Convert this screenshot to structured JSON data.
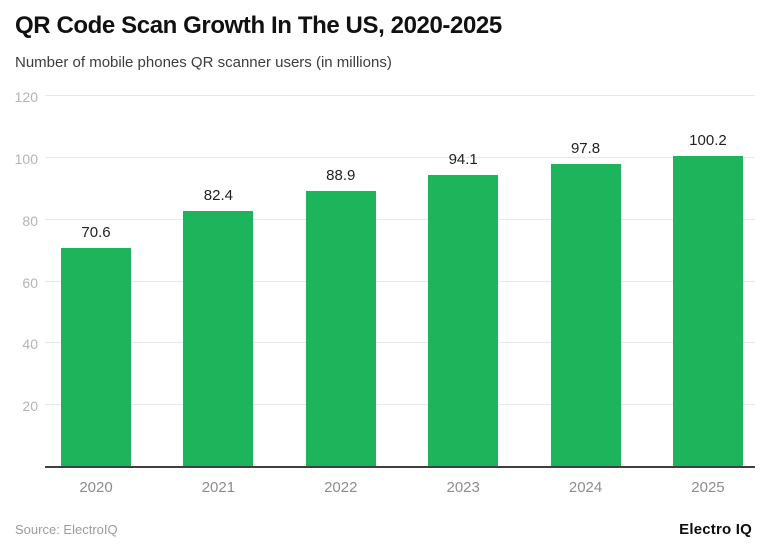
{
  "header": {
    "title": "QR Code Scan Growth In The US, 2020-2025",
    "subtitle": "Number of mobile phones QR scanner users (in millions)"
  },
  "footer": {
    "source": "Source: ElectroIQ",
    "brand": "Electro IQ"
  },
  "chart_data": {
    "type": "bar",
    "title": "QR Code Scan Growth In The US, 2020-2025",
    "subtitle": "Number of mobile phones QR scanner users (in millions)",
    "categories": [
      "2020",
      "2021",
      "2022",
      "2023",
      "2024",
      "2025"
    ],
    "values": [
      70.6,
      82.4,
      88.9,
      94.1,
      97.8,
      100.2
    ],
    "value_labels": [
      "70.6",
      "82.4",
      "88.9",
      "94.1",
      "97.8",
      "100.2"
    ],
    "y_ticks": [
      20,
      40,
      60,
      80,
      100,
      120
    ],
    "ylim": [
      0,
      120
    ],
    "xlabel": "",
    "ylabel": "",
    "grid": true,
    "legend": false,
    "bar_color": "#1eb45c",
    "colors": {
      "bar": "#1eb45c",
      "gridline": "#e8e8e8",
      "axis_line": "#3f3f3f",
      "y_tick_text": "#b4b4b4",
      "x_tick_text": "#8d8d8d",
      "value_text": "#222222",
      "title_text": "#111111",
      "subtitle_text": "#3d3d3d",
      "source_text": "#9c9c9c"
    }
  }
}
